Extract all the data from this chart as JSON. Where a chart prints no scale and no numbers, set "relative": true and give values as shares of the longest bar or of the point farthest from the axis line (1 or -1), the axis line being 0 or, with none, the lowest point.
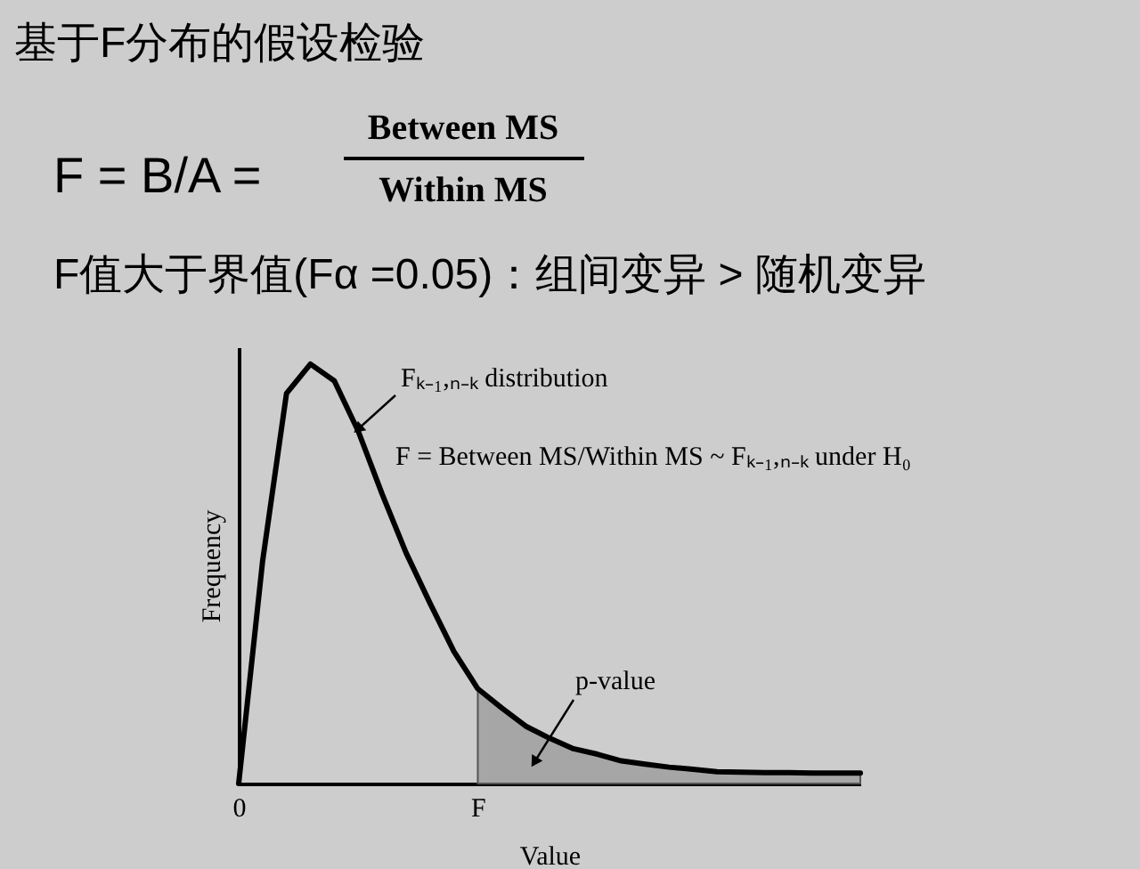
{
  "chart_data": {
    "type": "line",
    "title": "基于F分布的假设检验",
    "annotations": [
      "F = B/A =",
      "Between MS",
      "Within MS",
      "F值大于界值(Fα =0.05)：组间变异 > 随机变异",
      "Fₖ₋₁,ₙ₋ₖ distribution",
      "F = Between MS/Within MS ~ Fₖ₋₁,ₙ₋ₖ under H₀",
      "p-value"
    ],
    "xlabel": "Value",
    "ylabel": "Frequency",
    "relative": true,
    "tick_labels": "x",
    "marker": "none",
    "line_style": "solid",
    "categories": [
      "0",
      null,
      null,
      null,
      null,
      null,
      null,
      null,
      null,
      null,
      "F",
      null,
      null,
      null,
      null,
      null,
      null,
      null,
      null,
      null,
      null,
      null,
      null,
      null,
      null,
      null,
      null
    ],
    "series": [
      {
        "type": "area",
        "color": "#a6a6a6",
        "values": [
          null,
          null,
          null,
          null,
          null,
          null,
          null,
          null,
          null,
          null,
          0.226,
          0.18,
          0.137,
          0.108,
          0.083,
          0.07,
          0.054,
          0.046,
          0.039,
          0.034,
          0.028,
          0.027,
          0.026,
          0.026,
          0.025,
          0.025,
          0.025
        ]
      },
      {
        "type": "line",
        "color": "#000000",
        "values": [
          0,
          0.53,
          0.93,
          1,
          0.96,
          0.84,
          0.69,
          0.55,
          0.43,
          0.315,
          0.226,
          0.18,
          0.137,
          0.108,
          0.083,
          0.07,
          0.054,
          0.046,
          0.039,
          0.034,
          0.028,
          0.027,
          0.026,
          0.026,
          0.025,
          0.025,
          0.025
        ]
      }
    ]
  }
}
